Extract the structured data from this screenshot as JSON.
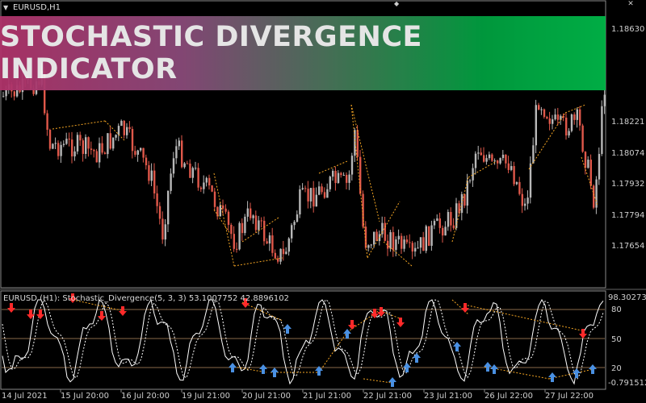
{
  "chart": {
    "symbol_label": "EURUSD,H1",
    "price_ticks": [
      "1.18630",
      "1.18221",
      "1.18074",
      "1.17932",
      "1.17794",
      "1.17654"
    ],
    "time_ticks": [
      "14 Jul 2021",
      "15 Jul 20:00",
      "16 Jul 20:00",
      "19 Jul 21:00",
      "20 Jul 21:00",
      "21 Jul 21:00",
      "22 Jul 21:00",
      "23 Jul 21:00",
      "26 Jul 22:00",
      "27 Jul 22:00"
    ]
  },
  "banner": {
    "text": "STOCHASTIC DIVERGENCE INDICATOR"
  },
  "indicator": {
    "title": "EURUSD (H1):  Stochastic_Divergence(5, 3, 3) 53.1007752 42.8896102",
    "level_ticks": [
      "98.302733",
      "80",
      "50",
      "20",
      "-0.7915126"
    ]
  },
  "colors": {
    "background": "#000000",
    "bull_candle": "#b8b8b8",
    "bear_candle": "#e0584a",
    "divergence_line": "#f5a623",
    "stoch_line": "#ffffff",
    "up_arrow": "#4a90e2",
    "down_arrow": "#ff2a2a"
  },
  "icons": {
    "close": "close-icon",
    "scroll": "scroll-to-end-icon"
  }
}
